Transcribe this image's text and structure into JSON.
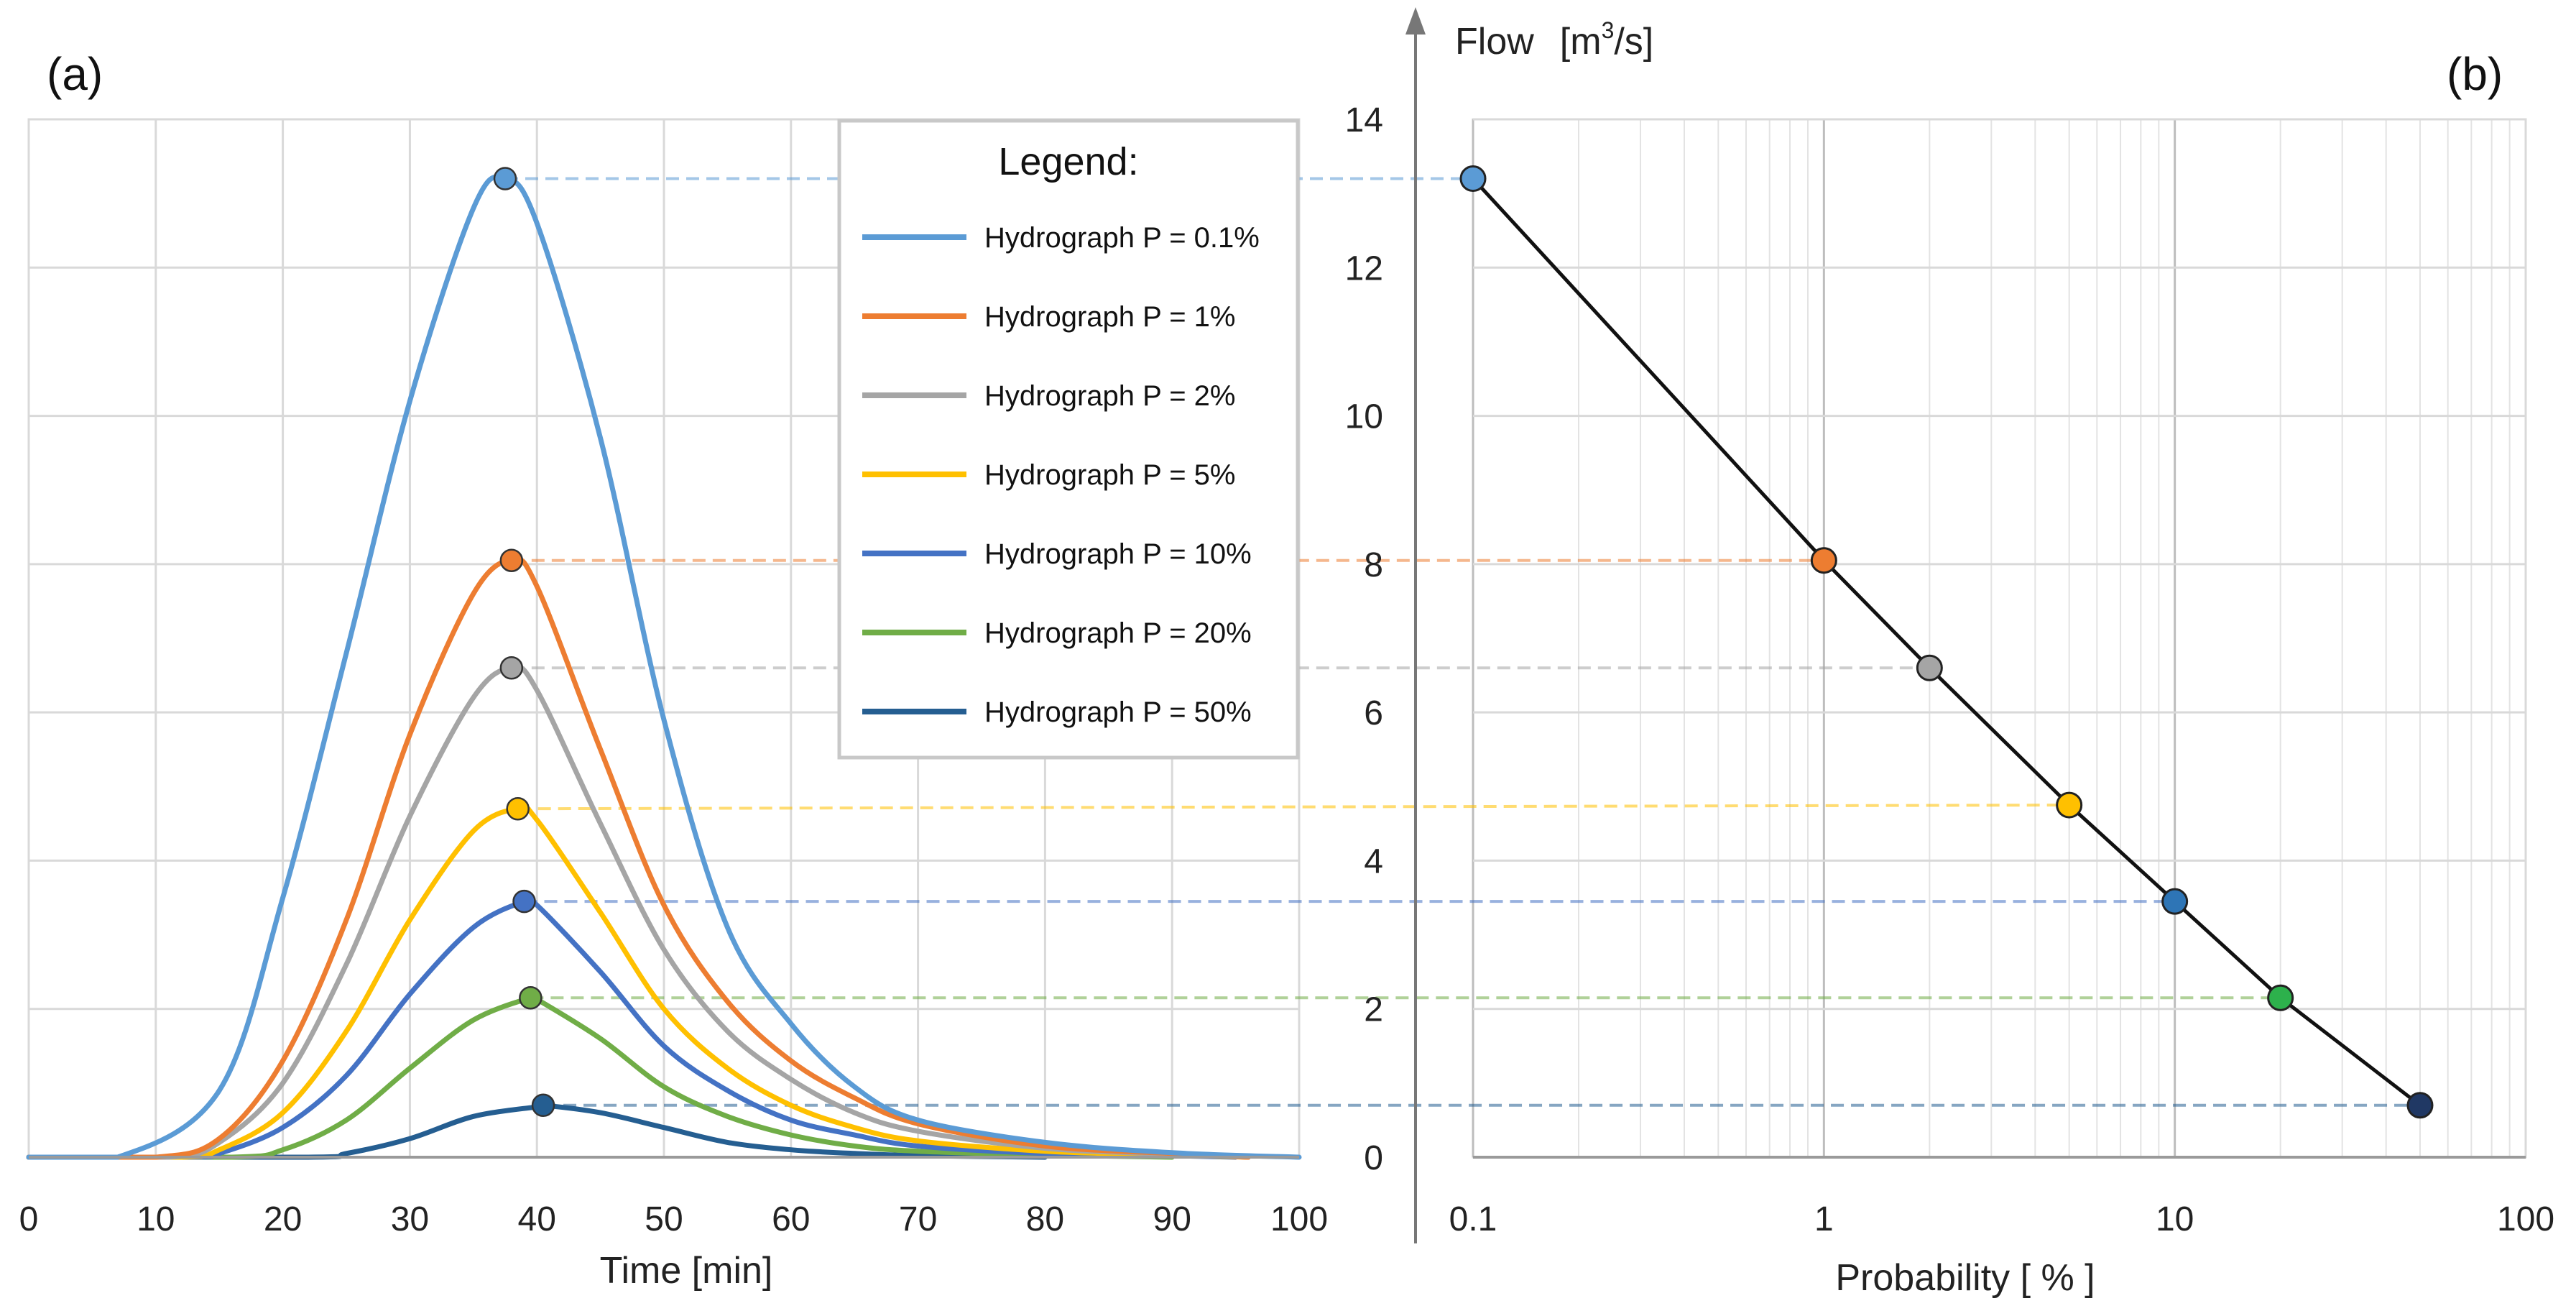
{
  "panel_a_label": "(a)",
  "panel_b_label": "(b)",
  "chart_data": [
    {
      "type": "line",
      "title": "",
      "xlabel": "Time  [min]",
      "ylabel": "",
      "xlim": [
        0,
        100
      ],
      "ylim": [
        0,
        14
      ],
      "x_ticks": [
        "0",
        "10",
        "20",
        "30",
        "40",
        "50",
        "60",
        "70",
        "80",
        "90",
        "100"
      ],
      "grid": true,
      "legend": {
        "title": "Legend:",
        "entries": [
          "Hydrograph P = 0.1%",
          "Hydrograph P = 1%",
          "Hydrograph P = 2%",
          "Hydrograph P = 5%",
          "Hydrograph P = 10%",
          "Hydrograph P = 20%",
          "Hydrograph P = 50%"
        ],
        "placement": "top-right"
      },
      "series": [
        {
          "name": "Hydrograph P = 0.1%",
          "color": "#5B9BD5",
          "peak": {
            "x": 37.5,
            "y": 13.2
          },
          "start": 7,
          "end": 100,
          "x": [
            0,
            7,
            15,
            20,
            25,
            30,
            35,
            37.5,
            40,
            45,
            50,
            55,
            60,
            65,
            70,
            80,
            90,
            100
          ],
          "y": [
            0,
            0,
            0.9,
            3.5,
            6.8,
            10.2,
            12.8,
            13.2,
            12.6,
            9.7,
            5.9,
            3.1,
            1.8,
            0.95,
            0.5,
            0.2,
            0.06,
            0
          ]
        },
        {
          "name": "Hydrograph P = 1%",
          "color": "#ED7D31",
          "peak": {
            "x": 38,
            "y": 8.05
          },
          "start": 10,
          "end": 96,
          "x": [
            0,
            10,
            15,
            20,
            25,
            30,
            35,
            38,
            40,
            45,
            50,
            55,
            60,
            65,
            70,
            80,
            90,
            96
          ],
          "y": [
            0,
            0,
            0.25,
            1.3,
            3.2,
            5.7,
            7.6,
            8.05,
            7.7,
            5.5,
            3.4,
            2.1,
            1.3,
            0.8,
            0.45,
            0.15,
            0.05,
            0
          ]
        },
        {
          "name": "Hydrograph P = 2%",
          "color": "#A5A5A5",
          "peak": {
            "x": 38,
            "y": 6.6
          },
          "start": 11,
          "end": 96,
          "x": [
            0,
            11,
            15,
            20,
            25,
            30,
            35,
            38,
            40,
            45,
            50,
            55,
            60,
            65,
            70,
            80,
            90,
            96
          ],
          "y": [
            0,
            0,
            0.2,
            1.0,
            2.6,
            4.6,
            6.2,
            6.6,
            6.3,
            4.5,
            2.8,
            1.7,
            1.05,
            0.6,
            0.35,
            0.12,
            0.04,
            0
          ]
        },
        {
          "name": "Hydrograph P = 5%",
          "color": "#FFC000",
          "peak": {
            "x": 38.5,
            "y": 4.7
          },
          "start": 12,
          "end": 96,
          "x": [
            0,
            12,
            15,
            20,
            25,
            30,
            35,
            38.5,
            40,
            45,
            50,
            55,
            60,
            65,
            70,
            80,
            90,
            96
          ],
          "y": [
            0,
            0,
            0.1,
            0.6,
            1.7,
            3.2,
            4.4,
            4.7,
            4.55,
            3.3,
            2.0,
            1.2,
            0.7,
            0.4,
            0.22,
            0.08,
            0.03,
            0
          ]
        },
        {
          "name": "Hydrograph P = 10%",
          "color": "#4472C4",
          "peak": {
            "x": 39,
            "y": 3.45
          },
          "start": 13,
          "end": 95,
          "x": [
            0,
            13,
            15,
            20,
            25,
            30,
            35,
            39,
            40,
            45,
            50,
            55,
            60,
            65,
            70,
            80,
            90,
            95
          ],
          "y": [
            0,
            0,
            0.05,
            0.4,
            1.1,
            2.2,
            3.1,
            3.45,
            3.4,
            2.5,
            1.5,
            0.9,
            0.5,
            0.3,
            0.15,
            0.05,
            0.02,
            0
          ]
        },
        {
          "name": "Hydrograph P = 20%",
          "color": "#70AD47",
          "peak": {
            "x": 39.5,
            "y": 2.15
          },
          "start": 16,
          "end": 90,
          "x": [
            0,
            16,
            20,
            25,
            30,
            35,
            39.5,
            40,
            45,
            50,
            55,
            60,
            65,
            70,
            80,
            90
          ],
          "y": [
            0,
            0,
            0.1,
            0.5,
            1.2,
            1.85,
            2.15,
            2.13,
            1.6,
            0.95,
            0.55,
            0.3,
            0.15,
            0.08,
            0.03,
            0
          ]
        },
        {
          "name": "Hydrograph P = 50%",
          "color": "#255E91",
          "peak": {
            "x": 40.5,
            "y": 0.7
          },
          "start": 22,
          "end": 80,
          "x": [
            0,
            22,
            25,
            30,
            35,
            40,
            40.5,
            45,
            50,
            55,
            60,
            65,
            70,
            80
          ],
          "y": [
            0,
            0,
            0.05,
            0.25,
            0.55,
            0.68,
            0.7,
            0.6,
            0.4,
            0.2,
            0.1,
            0.05,
            0.02,
            0
          ]
        }
      ]
    },
    {
      "type": "line",
      "title": "",
      "xlabel": "Probability  [ % ]",
      "ylabel": "Flow",
      "ylabel_unit": "[m",
      "ylabel_unit_sup": "3",
      "ylabel_unit_end": "/s]",
      "x_scale": "log",
      "xlim": [
        0.1,
        100
      ],
      "ylim": [
        0,
        14
      ],
      "x_ticks": [
        "0.1",
        "1",
        "10",
        "100"
      ],
      "y_ticks": [
        "0",
        "2",
        "4",
        "6",
        "8",
        "10",
        "12",
        "14"
      ],
      "grid": true,
      "line_color": "#111111",
      "points": [
        {
          "x": 0.1,
          "y": 13.2,
          "color": "#5B9BD5"
        },
        {
          "x": 1,
          "y": 8.05,
          "color": "#ED7D31"
        },
        {
          "x": 2,
          "y": 6.6,
          "color": "#A5A5A5"
        },
        {
          "x": 5,
          "y": 4.75,
          "color": "#FFC000"
        },
        {
          "x": 10,
          "y": 3.45,
          "color": "#2E75B6"
        },
        {
          "x": 20,
          "y": 2.15,
          "color": "#2DB14C"
        },
        {
          "x": 50,
          "y": 0.7,
          "color": "#203864"
        }
      ]
    }
  ]
}
